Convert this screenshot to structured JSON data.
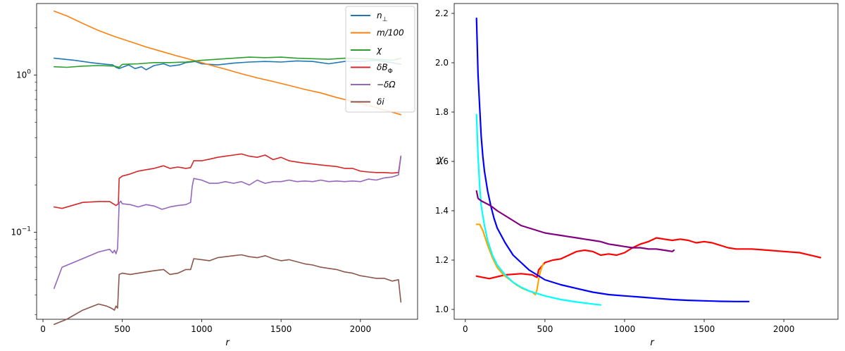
{
  "chart_data": [
    {
      "type": "line",
      "yscale": "log",
      "xlabel": "r",
      "ylabel": "",
      "xlim": [
        -40,
        2360
      ],
      "ylim": [
        0.028,
        2.85
      ],
      "xticks": [
        0,
        500,
        1000,
        1500,
        2000
      ],
      "xtick_labels": [
        "0",
        "500",
        "1000",
        "1500",
        "2000"
      ],
      "yticks": [
        0.1,
        1.0
      ],
      "ytick_label_base": [
        "10",
        "10"
      ],
      "ytick_label_exp": [
        "−1",
        "0"
      ],
      "legend_position": "top-right",
      "series": [
        {
          "name": "n",
          "name_sub": "⊥",
          "color": "#1f77b4",
          "x": [
            70,
            200,
            300,
            400,
            440,
            460,
            480,
            500,
            540,
            580,
            620,
            650,
            700,
            760,
            800,
            860,
            900,
            960,
            1000,
            1100,
            1200,
            1300,
            1400,
            1500,
            1600,
            1700,
            1800,
            1900,
            2000,
            2100,
            2200,
            2255
          ],
          "y": [
            1.28,
            1.24,
            1.2,
            1.17,
            1.16,
            1.12,
            1.1,
            1.12,
            1.16,
            1.1,
            1.13,
            1.08,
            1.15,
            1.18,
            1.14,
            1.16,
            1.2,
            1.22,
            1.18,
            1.16,
            1.19,
            1.21,
            1.22,
            1.21,
            1.23,
            1.22,
            1.18,
            1.22,
            1.22,
            1.24,
            1.2,
            1.17
          ]
        },
        {
          "name": "m/100",
          "name_sub": "",
          "color": "#ff7f0e",
          "x": [
            70,
            150,
            250,
            350,
            450,
            550,
            650,
            750,
            850,
            950,
            1050,
            1150,
            1250,
            1350,
            1450,
            1550,
            1650,
            1750,
            1850,
            1950,
            2050,
            2150,
            2255
          ],
          "y": [
            2.55,
            2.38,
            2.13,
            1.92,
            1.76,
            1.63,
            1.51,
            1.41,
            1.32,
            1.24,
            1.16,
            1.09,
            1.02,
            0.96,
            0.91,
            0.86,
            0.81,
            0.77,
            0.72,
            0.68,
            0.64,
            0.6,
            0.56
          ]
        },
        {
          "name": "χ",
          "name_sub": "",
          "color": "#2ca02c",
          "x": [
            70,
            150,
            250,
            350,
            450,
            480,
            500,
            600,
            700,
            800,
            900,
            1000,
            1100,
            1200,
            1300,
            1400,
            1500,
            1600,
            1700,
            1800,
            1900,
            2000,
            2100,
            2200,
            2255
          ],
          "y": [
            1.13,
            1.12,
            1.14,
            1.15,
            1.14,
            1.12,
            1.17,
            1.18,
            1.2,
            1.2,
            1.21,
            1.24,
            1.26,
            1.28,
            1.3,
            1.29,
            1.3,
            1.28,
            1.27,
            1.26,
            1.28,
            1.27,
            1.26,
            1.24,
            1.28
          ]
        },
        {
          "name": "δB",
          "name_sub": "Φ",
          "color": "#d62728",
          "x": [
            70,
            120,
            250,
            350,
            420,
            460,
            475,
            480,
            500,
            550,
            600,
            650,
            700,
            760,
            800,
            850,
            900,
            930,
            950,
            1000,
            1050,
            1100,
            1150,
            1200,
            1250,
            1300,
            1350,
            1400,
            1450,
            1500,
            1550,
            1600,
            1650,
            1700,
            1750,
            1800,
            1850,
            1900,
            1950,
            2000,
            2050,
            2100,
            2150,
            2200,
            2240,
            2255
          ],
          "y": [
            0.145,
            0.142,
            0.155,
            0.157,
            0.157,
            0.148,
            0.152,
            0.22,
            0.228,
            0.235,
            0.245,
            0.25,
            0.255,
            0.265,
            0.255,
            0.26,
            0.255,
            0.258,
            0.285,
            0.285,
            0.292,
            0.3,
            0.305,
            0.31,
            0.315,
            0.305,
            0.3,
            0.31,
            0.29,
            0.3,
            0.285,
            0.28,
            0.275,
            0.272,
            0.268,
            0.265,
            0.262,
            0.255,
            0.255,
            0.245,
            0.242,
            0.24,
            0.24,
            0.238,
            0.24,
            0.305
          ]
        },
        {
          "name": "−δΩ",
          "name_sub": "",
          "color": "#9467bd",
          "x": [
            70,
            120,
            250,
            350,
            420,
            440,
            450,
            460,
            470,
            480,
            490,
            500,
            550,
            600,
            650,
            700,
            750,
            800,
            850,
            900,
            930,
            940,
            950,
            1000,
            1050,
            1100,
            1150,
            1200,
            1250,
            1300,
            1350,
            1400,
            1450,
            1500,
            1550,
            1600,
            1650,
            1700,
            1750,
            1800,
            1850,
            1900,
            1950,
            2000,
            2050,
            2100,
            2150,
            2200,
            2240,
            2255
          ],
          "y": [
            0.044,
            0.06,
            0.068,
            0.075,
            0.078,
            0.074,
            0.077,
            0.073,
            0.079,
            0.153,
            0.158,
            0.152,
            0.15,
            0.145,
            0.15,
            0.147,
            0.14,
            0.145,
            0.148,
            0.15,
            0.155,
            0.195,
            0.22,
            0.215,
            0.205,
            0.205,
            0.21,
            0.205,
            0.21,
            0.2,
            0.215,
            0.205,
            0.21,
            0.21,
            0.215,
            0.21,
            0.212,
            0.21,
            0.215,
            0.21,
            0.212,
            0.21,
            0.212,
            0.21,
            0.218,
            0.215,
            0.222,
            0.225,
            0.232,
            0.305
          ]
        },
        {
          "name": "δi",
          "name_sub": "",
          "color": "#8c564b",
          "x": [
            70,
            150,
            250,
            350,
            400,
            430,
            450,
            460,
            470,
            480,
            500,
            550,
            600,
            650,
            700,
            760,
            800,
            850,
            900,
            930,
            950,
            1000,
            1050,
            1100,
            1150,
            1200,
            1250,
            1300,
            1350,
            1400,
            1450,
            1500,
            1550,
            1600,
            1650,
            1700,
            1750,
            1800,
            1850,
            1900,
            1950,
            2000,
            2050,
            2100,
            2150,
            2200,
            2240,
            2255
          ],
          "y": [
            0.026,
            0.028,
            0.032,
            0.035,
            0.034,
            0.033,
            0.032,
            0.034,
            0.033,
            0.054,
            0.055,
            0.054,
            0.055,
            0.056,
            0.057,
            0.058,
            0.054,
            0.055,
            0.058,
            0.058,
            0.068,
            0.067,
            0.066,
            0.069,
            0.07,
            0.071,
            0.072,
            0.07,
            0.069,
            0.071,
            0.068,
            0.066,
            0.067,
            0.065,
            0.063,
            0.062,
            0.06,
            0.059,
            0.058,
            0.056,
            0.055,
            0.053,
            0.052,
            0.051,
            0.051,
            0.049,
            0.05,
            0.036
          ]
        }
      ]
    },
    {
      "type": "line",
      "yscale": "linear",
      "xlabel": "r",
      "ylabel": "χ",
      "xlim": [
        -70,
        2340
      ],
      "ylim": [
        0.96,
        2.24
      ],
      "xticks": [
        0,
        500,
        1000,
        1500,
        2000
      ],
      "xtick_labels": [
        "0",
        "500",
        "1000",
        "1500",
        "2000"
      ],
      "yticks": [
        1.0,
        1.2,
        1.4,
        1.6,
        1.8,
        2.0,
        2.2
      ],
      "ytick_labels": [
        "1.0",
        "1.2",
        "1.4",
        "1.6",
        "1.8",
        "2.0",
        "2.2"
      ],
      "series": [
        {
          "name": "red",
          "color": "#ff0000",
          "x": [
            70,
            150,
            250,
            350,
            420,
            450,
            460,
            480,
            500,
            550,
            600,
            650,
            700,
            750,
            800,
            850,
            900,
            950,
            1000,
            1050,
            1100,
            1150,
            1200,
            1250,
            1300,
            1350,
            1400,
            1450,
            1500,
            1550,
            1600,
            1650,
            1700,
            1750,
            1800,
            1900,
            2000,
            2100,
            2200,
            2230
          ],
          "y": [
            1.135,
            1.125,
            1.14,
            1.145,
            1.14,
            1.13,
            1.16,
            1.175,
            1.19,
            1.2,
            1.205,
            1.22,
            1.235,
            1.24,
            1.235,
            1.22,
            1.225,
            1.22,
            1.23,
            1.25,
            1.265,
            1.275,
            1.29,
            1.285,
            1.28,
            1.285,
            1.28,
            1.27,
            1.275,
            1.27,
            1.26,
            1.25,
            1.245,
            1.245,
            1.245,
            1.24,
            1.235,
            1.23,
            1.215,
            1.21
          ]
        },
        {
          "name": "orange",
          "color": "#ffa500",
          "x": [
            70,
            90,
            110,
            140,
            170,
            200,
            240,
            280,
            320,
            360,
            400,
            420,
            440,
            450,
            460,
            470,
            480,
            490
          ],
          "y": [
            1.345,
            1.345,
            1.32,
            1.26,
            1.21,
            1.17,
            1.14,
            1.12,
            1.1,
            1.085,
            1.075,
            1.07,
            1.06,
            1.08,
            1.12,
            1.15,
            1.17,
            1.185
          ]
        },
        {
          "name": "cyan",
          "color": "#00ffff",
          "x": [
            70,
            80,
            90,
            100,
            120,
            140,
            170,
            200,
            250,
            300,
            350,
            400,
            450,
            500,
            600,
            700,
            800,
            850
          ],
          "y": [
            1.79,
            1.62,
            1.5,
            1.42,
            1.34,
            1.28,
            1.22,
            1.18,
            1.14,
            1.11,
            1.09,
            1.075,
            1.065,
            1.055,
            1.04,
            1.03,
            1.022,
            1.018
          ]
        },
        {
          "name": "blue",
          "color": "#0000ff",
          "x": [
            70,
            80,
            90,
            100,
            110,
            120,
            140,
            160,
            180,
            200,
            250,
            300,
            350,
            400,
            450,
            500,
            600,
            700,
            800,
            900,
            1000,
            1100,
            1200,
            1300,
            1400,
            1500,
            1600,
            1700,
            1780
          ],
          "y": [
            2.18,
            1.95,
            1.82,
            1.7,
            1.62,
            1.56,
            1.48,
            1.42,
            1.37,
            1.33,
            1.27,
            1.22,
            1.19,
            1.16,
            1.14,
            1.12,
            1.1,
            1.085,
            1.07,
            1.06,
            1.055,
            1.05,
            1.045,
            1.04,
            1.037,
            1.035,
            1.033,
            1.032,
            1.032
          ]
        },
        {
          "name": "purple",
          "color": "#800080",
          "x": [
            70,
            80,
            100,
            130,
            160,
            200,
            250,
            300,
            350,
            400,
            450,
            500,
            550,
            600,
            650,
            700,
            750,
            800,
            850,
            900,
            950,
            1000,
            1050,
            1100,
            1150,
            1200,
            1250,
            1300,
            1310
          ],
          "y": [
            1.48,
            1.45,
            1.44,
            1.43,
            1.42,
            1.4,
            1.38,
            1.36,
            1.34,
            1.33,
            1.32,
            1.31,
            1.305,
            1.3,
            1.295,
            1.29,
            1.285,
            1.28,
            1.275,
            1.265,
            1.26,
            1.255,
            1.25,
            1.25,
            1.245,
            1.245,
            1.24,
            1.235,
            1.24
          ]
        }
      ]
    }
  ]
}
